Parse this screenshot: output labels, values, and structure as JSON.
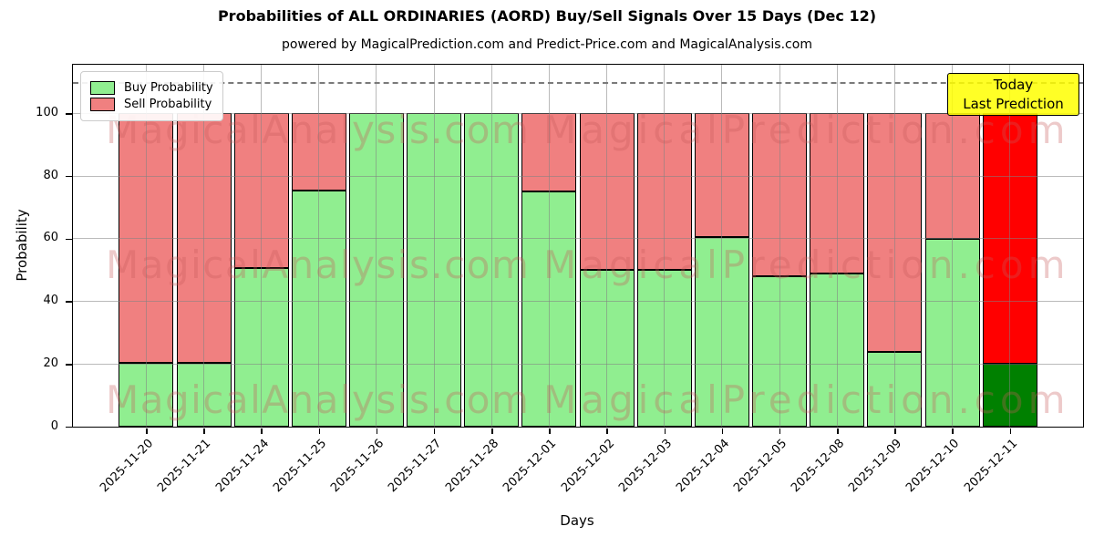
{
  "chart_data": {
    "type": "bar",
    "stacked": true,
    "title": "Probabilities of ALL ORDINARIES (AORD) Buy/Sell Signals Over 15 Days (Dec 12)",
    "subtitle": "powered by MagicalPrediction.com and Predict-Price.com and MagicalAnalysis.com",
    "xlabel": "Days",
    "ylabel": "Probability",
    "ylim": [
      0,
      115.5
    ],
    "yticks": [
      0,
      20,
      40,
      60,
      80,
      100
    ],
    "grid": true,
    "dashed_line_y": 110,
    "categories": [
      "2025-11-20",
      "2025-11-21",
      "2025-11-24",
      "2025-11-25",
      "2025-11-26",
      "2025-11-27",
      "2025-11-28",
      "2025-12-01",
      "2025-12-02",
      "2025-12-03",
      "2025-12-04",
      "2025-12-05",
      "2025-12-08",
      "2025-12-09",
      "2025-12-10",
      "2025-12-11"
    ],
    "series": [
      {
        "name": "Buy Probability",
        "color": "#90ee90",
        "last_bar_color": "#008000",
        "values": [
          20.5,
          20.5,
          50.5,
          75.5,
          100,
          100,
          100,
          75,
          50,
          50,
          60.5,
          48,
          49,
          24,
          60,
          20
        ]
      },
      {
        "name": "Sell Probability",
        "color": "#f08080",
        "last_bar_color": "#ff0000",
        "values": [
          79.5,
          79.5,
          49.5,
          24.5,
          0,
          0,
          0,
          25,
          50,
          50,
          39.5,
          52,
          51,
          76,
          40,
          80
        ]
      }
    ],
    "legend": {
      "position": "upper-left"
    },
    "annotation": {
      "line1": "Today",
      "line2": "Last Prediction",
      "bg": "#ffff00"
    },
    "watermarks": {
      "left": "MagicalAnalysis.com",
      "right": "MagicalPrediction.com",
      "rows": 3
    },
    "colors": {
      "bar_edge": "#000000",
      "gridline": "#828282",
      "dashed_line": "#7a7a7a",
      "annotation_bg": "#ffff00"
    }
  }
}
